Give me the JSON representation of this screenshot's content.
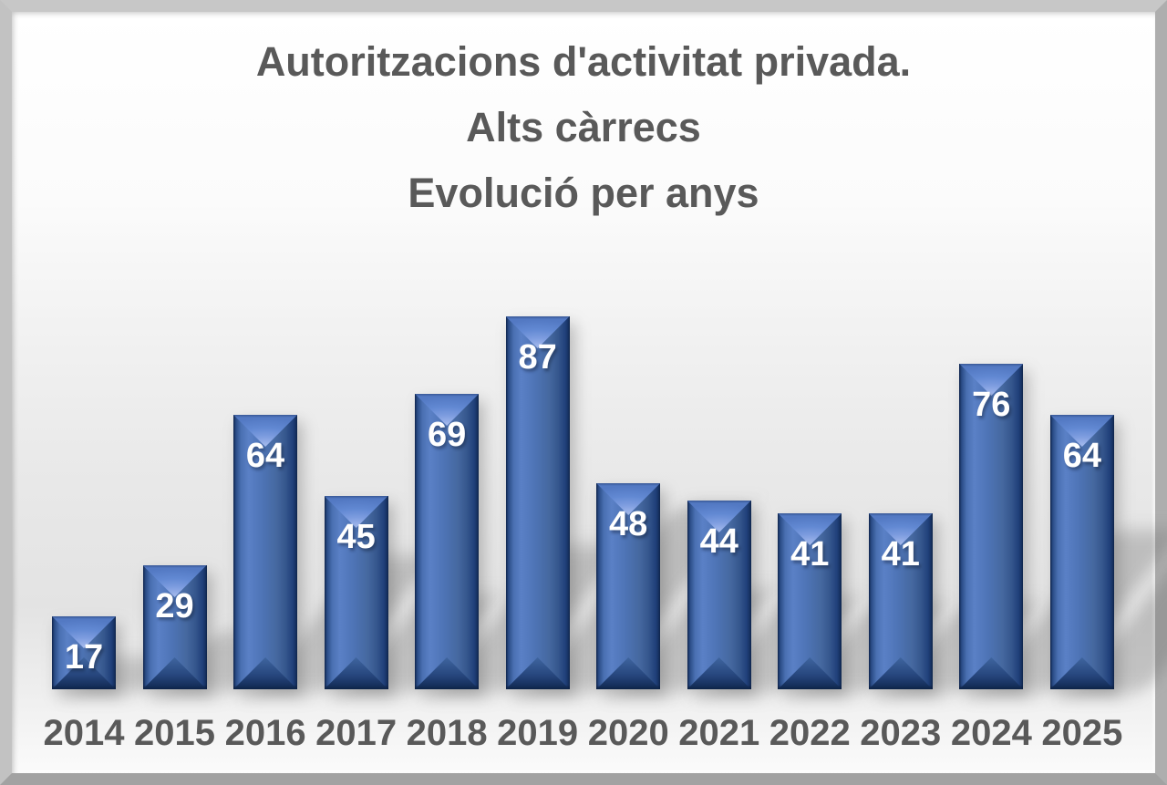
{
  "chart_data": {
    "type": "bar",
    "title": "Autoritzacions d'activitat privada. Alts càrrecs. Evolució per anys",
    "title_lines": [
      "Autoritzacions d'activitat privada.",
      "Alts càrrecs",
      "Evolució per anys"
    ],
    "categories": [
      "2014",
      "2015",
      "2016",
      "2017",
      "2018",
      "2019",
      "2020",
      "2021",
      "2022",
      "2023",
      "2024",
      "2025"
    ],
    "values": [
      17,
      29,
      64,
      45,
      69,
      87,
      48,
      44,
      41,
      41,
      76,
      64
    ],
    "xlabel": "",
    "ylabel": "",
    "ylim": [
      0,
      87
    ],
    "grid": false,
    "legend": null,
    "axes_visible": false,
    "data_labels_position": "inside-top",
    "bar_style": "3d-bevel",
    "colors": {
      "bar_face": "#4c72b4",
      "bar_edge_dark": "#16305e",
      "bar_bevel_light": "#7e9de0",
      "value_label_text": "#ffffff",
      "axis_text": "#595959",
      "title_text": "#595959",
      "background_top": "#ffffff",
      "background_mid": "#e3e3e3",
      "frame_gray": "#b5b5b5"
    }
  }
}
